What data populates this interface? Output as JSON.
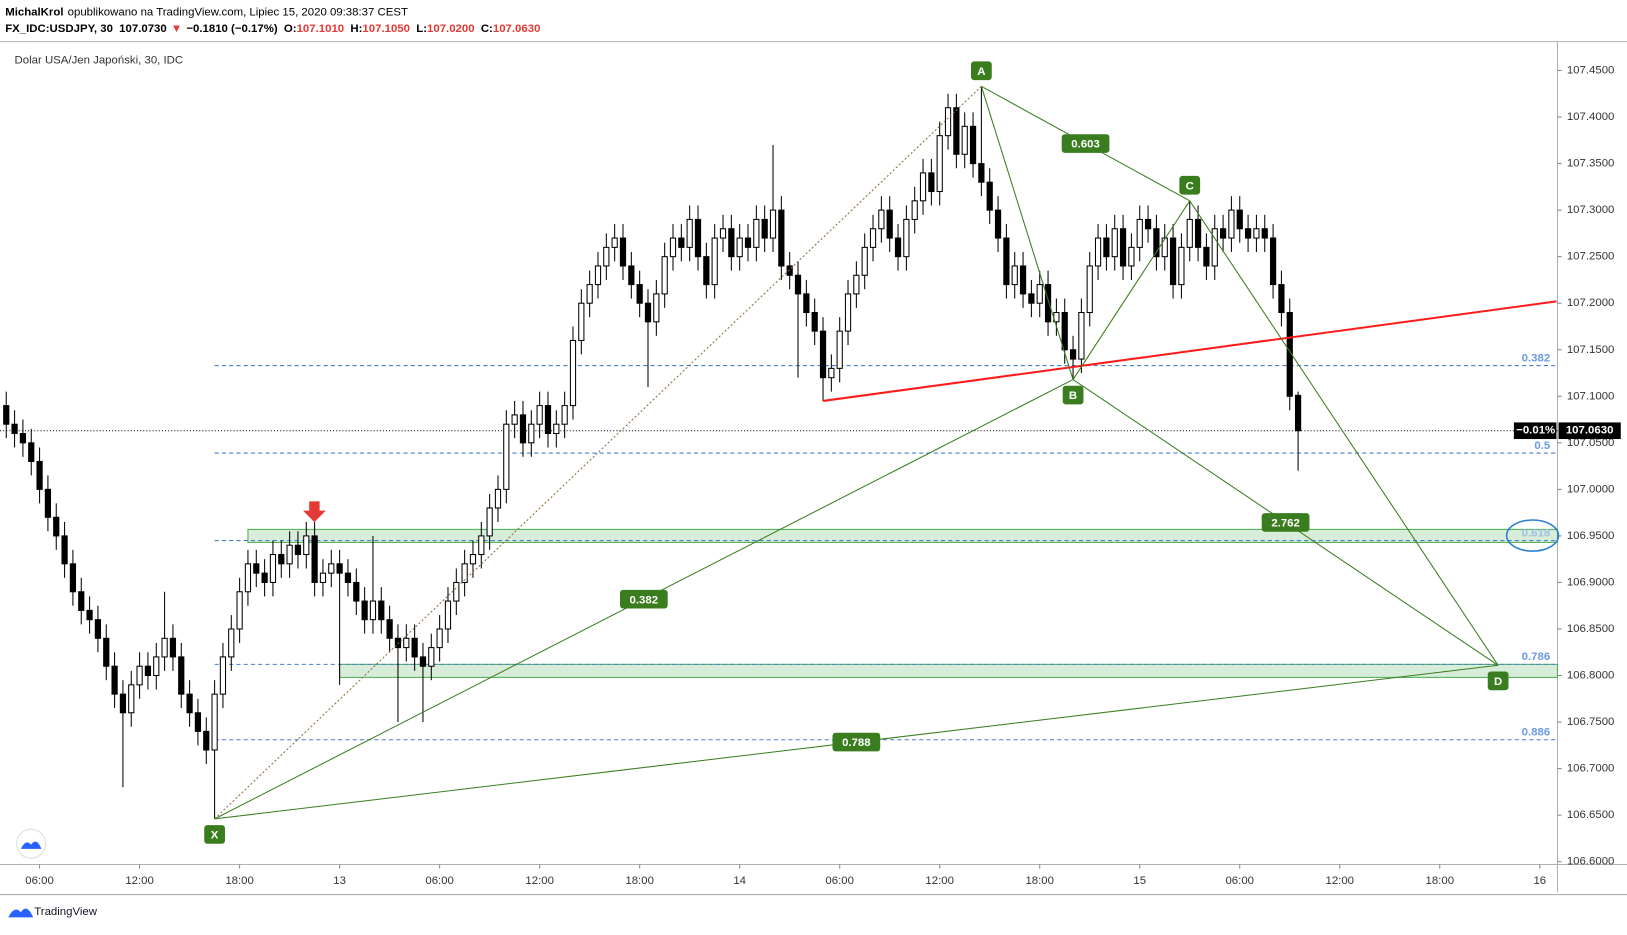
{
  "header": {
    "author": "MichalKrol",
    "byline": "opublikowano na TradingView.com, Lipiec 15, 2020 09:38:37 CEST",
    "symbol": "FX_IDC:USDJPY, 30",
    "price": "107.0730",
    "direction": "▼",
    "change": "−0.1810 (−0.17%)",
    "ohlc": [
      {
        "label": "O:",
        "value": "107.1010"
      },
      {
        "label": "H:",
        "value": "107.1050"
      },
      {
        "label": "L:",
        "value": "107.0200"
      },
      {
        "label": "C:",
        "value": "107.0630"
      }
    ]
  },
  "footer": "TradingView",
  "chart_data": {
    "type": "candlestick",
    "title": "Dolar USA/Jen Japoński, 30, IDC",
    "categories": [
      null,
      null,
      null,
      null,
      "06:00",
      null,
      null,
      null,
      null,
      null,
      null,
      null,
      null,
      null,
      null,
      null,
      "12:00",
      null,
      null,
      null,
      null,
      null,
      null,
      null,
      null,
      null,
      null,
      null,
      "18:00",
      null,
      null,
      null,
      null,
      null,
      null,
      null,
      null,
      null,
      null,
      null,
      "13",
      null,
      null,
      null,
      null,
      null,
      null,
      null,
      null,
      null,
      null,
      null,
      "06:00",
      null,
      null,
      null,
      null,
      null,
      null,
      null,
      null,
      null,
      null,
      null,
      "12:00",
      null,
      null,
      null,
      null,
      null,
      null,
      null,
      null,
      null,
      null,
      null,
      "18:00",
      null,
      null,
      null,
      null,
      null,
      null,
      null,
      null,
      null,
      null,
      null,
      "14",
      null,
      null,
      null,
      null,
      null,
      null,
      null,
      null,
      null,
      null,
      null,
      "06:00",
      null,
      null,
      null,
      null,
      null,
      null,
      null,
      null,
      null,
      null,
      null,
      "12:00",
      null,
      null,
      null,
      null,
      null,
      null,
      null,
      null,
      null,
      null,
      null,
      "18:00",
      null,
      null,
      null,
      null,
      null,
      null,
      null,
      null,
      null,
      null,
      null,
      "15",
      null,
      null,
      null,
      null,
      null,
      null,
      null,
      null,
      null,
      null,
      null,
      "06:00",
      null,
      null,
      null,
      null,
      null,
      null,
      null,
      null,
      null,
      null,
      null,
      "12:00",
      null,
      null,
      null,
      null,
      null,
      null,
      null,
      null,
      null,
      null,
      null,
      "18:00",
      null,
      null,
      null,
      null,
      null,
      null,
      null,
      null,
      null,
      null,
      null,
      "16",
      null
    ],
    "open": [
      107.09,
      107.07,
      107.06,
      107.05,
      107.03,
      107.0,
      106.97,
      106.95,
      106.92,
      106.89,
      106.87,
      106.86,
      106.84,
      106.81,
      106.78,
      106.76,
      106.79,
      106.81,
      106.8,
      106.82,
      106.84,
      106.82,
      106.78,
      106.76,
      106.74,
      106.72,
      106.78,
      106.82,
      106.85,
      106.89,
      106.92,
      106.91,
      106.9,
      106.93,
      106.92,
      106.94,
      106.93,
      106.95,
      106.9,
      106.91,
      106.92,
      106.91,
      106.9,
      106.88,
      106.86,
      106.88,
      106.86,
      106.84,
      106.83,
      106.84,
      106.82,
      106.81,
      106.83,
      106.85,
      106.88,
      106.9,
      106.92,
      106.93,
      106.95,
      106.98,
      107.0,
      107.07,
      107.08,
      107.05,
      107.07,
      107.09,
      107.06,
      107.07,
      107.09,
      107.16,
      107.2,
      107.22,
      107.24,
      107.26,
      107.27,
      107.24,
      107.22,
      107.2,
      107.18,
      107.21,
      107.25,
      107.27,
      107.26,
      107.29,
      107.25,
      107.22,
      107.27,
      107.28,
      107.25,
      107.27,
      107.26,
      107.29,
      107.27,
      107.3,
      107.24,
      107.23,
      107.21,
      107.19,
      107.17,
      107.12,
      107.13,
      107.17,
      107.21,
      107.23,
      107.26,
      107.28,
      107.3,
      107.27,
      107.25,
      107.29,
      107.31,
      107.34,
      107.32,
      107.38,
      107.41,
      107.36,
      107.39,
      107.35,
      107.33,
      107.3,
      107.27,
      107.22,
      107.24,
      107.21,
      107.2,
      107.22,
      107.18,
      107.19,
      107.15,
      107.14,
      107.19,
      107.24,
      107.27,
      107.25,
      107.28,
      107.24,
      107.26,
      107.29,
      107.28,
      107.25,
      107.27,
      107.22,
      107.26,
      107.29,
      107.26,
      107.24,
      107.28,
      107.27,
      107.3,
      107.28,
      107.27,
      107.28,
      107.27,
      107.22,
      107.19,
      107.101,
      null,
      null,
      null,
      null,
      null,
      null,
      null,
      null,
      null,
      null,
      null,
      null,
      null,
      null,
      null,
      null,
      null,
      null,
      null,
      null,
      null,
      null,
      null,
      null,
      null,
      null,
      null,
      null,
      null,
      null
    ],
    "high": [
      107.105,
      107.085,
      107.075,
      107.065,
      107.045,
      107.015,
      106.985,
      106.965,
      106.935,
      106.905,
      106.885,
      106.875,
      106.855,
      106.825,
      106.795,
      106.805,
      106.825,
      106.825,
      106.835,
      106.89,
      106.855,
      106.835,
      106.795,
      106.775,
      106.755,
      106.795,
      106.835,
      106.865,
      106.905,
      106.935,
      106.935,
      106.925,
      106.945,
      106.945,
      106.955,
      106.955,
      106.965,
      106.965,
      106.925,
      106.935,
      106.935,
      106.925,
      106.915,
      106.895,
      106.95,
      106.895,
      106.875,
      106.855,
      106.855,
      106.855,
      106.835,
      106.845,
      106.865,
      106.895,
      106.915,
      106.935,
      106.945,
      106.965,
      106.995,
      107.015,
      107.085,
      107.095,
      107.095,
      107.085,
      107.105,
      107.105,
      107.085,
      107.105,
      107.175,
      107.215,
      107.235,
      107.255,
      107.275,
      107.285,
      107.285,
      107.255,
      107.235,
      107.215,
      107.225,
      107.265,
      107.285,
      107.285,
      107.305,
      107.305,
      107.265,
      107.285,
      107.295,
      107.295,
      107.285,
      107.285,
      107.305,
      107.305,
      107.37,
      107.315,
      107.255,
      107.245,
      107.225,
      107.205,
      107.185,
      107.145,
      107.185,
      107.225,
      107.245,
      107.275,
      107.295,
      107.315,
      107.315,
      107.285,
      107.305,
      107.325,
      107.355,
      107.355,
      107.395,
      107.425,
      107.425,
      107.405,
      107.405,
      107.433,
      107.345,
      107.315,
      107.285,
      107.255,
      107.255,
      107.225,
      107.235,
      107.235,
      107.205,
      107.205,
      107.165,
      107.205,
      107.255,
      107.285,
      107.285,
      107.295,
      107.295,
      107.275,
      107.305,
      107.305,
      107.295,
      107.285,
      107.285,
      107.275,
      107.31,
      107.305,
      107.275,
      107.295,
      107.295,
      107.315,
      107.315,
      107.295,
      107.295,
      107.295,
      107.285,
      107.235,
      107.205,
      107.105,
      null,
      null,
      null,
      null,
      null,
      null,
      null,
      null,
      null,
      null,
      null,
      null,
      null,
      null,
      null,
      null,
      null,
      null,
      null,
      null,
      null,
      null,
      null,
      null,
      null,
      null,
      null,
      null,
      null,
      null
    ],
    "low": [
      107.055,
      107.045,
      107.035,
      107.015,
      106.985,
      106.955,
      106.935,
      106.905,
      106.875,
      106.855,
      106.845,
      106.825,
      106.795,
      106.765,
      106.68,
      106.745,
      106.775,
      106.785,
      106.785,
      106.805,
      106.805,
      106.765,
      106.745,
      106.725,
      106.705,
      106.646,
      106.765,
      106.805,
      106.835,
      106.875,
      106.895,
      106.885,
      106.885,
      106.905,
      106.905,
      106.915,
      106.915,
      106.885,
      106.885,
      106.895,
      106.79,
      106.885,
      106.865,
      106.845,
      106.845,
      106.845,
      106.825,
      106.75,
      106.815,
      106.805,
      106.75,
      106.795,
      106.815,
      106.835,
      106.865,
      106.885,
      106.905,
      106.915,
      106.935,
      106.965,
      106.985,
      107.055,
      107.035,
      107.035,
      107.055,
      107.045,
      107.045,
      107.055,
      107.075,
      107.145,
      107.185,
      107.205,
      107.225,
      107.245,
      107.225,
      107.205,
      107.185,
      107.11,
      107.165,
      107.195,
      107.235,
      107.245,
      107.245,
      107.235,
      107.205,
      107.205,
      107.255,
      107.235,
      107.235,
      107.245,
      107.245,
      107.255,
      107.255,
      107.225,
      107.215,
      107.12,
      107.175,
      107.155,
      107.095,
      107.105,
      107.115,
      107.155,
      107.195,
      107.215,
      107.245,
      107.265,
      107.255,
      107.235,
      107.235,
      107.275,
      107.295,
      107.305,
      107.305,
      107.365,
      107.345,
      107.345,
      107.335,
      107.315,
      107.285,
      107.255,
      107.205,
      107.205,
      107.195,
      107.185,
      107.185,
      107.165,
      107.165,
      107.135,
      107.118,
      107.125,
      107.175,
      107.225,
      107.235,
      107.235,
      107.225,
      107.225,
      107.245,
      107.265,
      107.235,
      107.235,
      107.205,
      107.205,
      107.245,
      107.245,
      107.225,
      107.225,
      107.255,
      107.255,
      107.265,
      107.255,
      107.255,
      107.255,
      107.205,
      107.175,
      107.085,
      107.02,
      null,
      null,
      null,
      null,
      null,
      null,
      null,
      null,
      null,
      null,
      null,
      null,
      null,
      null,
      null,
      null,
      null,
      null,
      null,
      null,
      null,
      null,
      null,
      null,
      null,
      null,
      null,
      null,
      null,
      null
    ],
    "close": [
      107.07,
      107.06,
      107.05,
      107.03,
      107.0,
      106.97,
      106.95,
      106.92,
      106.89,
      106.87,
      106.86,
      106.84,
      106.81,
      106.78,
      106.76,
      106.79,
      106.81,
      106.8,
      106.82,
      106.84,
      106.82,
      106.78,
      106.76,
      106.74,
      106.72,
      106.78,
      106.82,
      106.85,
      106.89,
      106.92,
      106.91,
      106.9,
      106.93,
      106.92,
      106.94,
      106.93,
      106.95,
      106.9,
      106.91,
      106.92,
      106.91,
      106.9,
      106.88,
      106.86,
      106.88,
      106.86,
      106.84,
      106.83,
      106.84,
      106.82,
      106.81,
      106.83,
      106.85,
      106.88,
      106.9,
      106.92,
      106.93,
      106.95,
      106.98,
      107.0,
      107.07,
      107.08,
      107.05,
      107.07,
      107.09,
      107.06,
      107.07,
      107.09,
      107.16,
      107.2,
      107.22,
      107.24,
      107.26,
      107.27,
      107.24,
      107.22,
      107.2,
      107.18,
      107.21,
      107.25,
      107.27,
      107.26,
      107.29,
      107.25,
      107.22,
      107.27,
      107.28,
      107.25,
      107.27,
      107.26,
      107.29,
      107.27,
      107.3,
      107.24,
      107.23,
      107.21,
      107.19,
      107.17,
      107.12,
      107.13,
      107.17,
      107.21,
      107.23,
      107.26,
      107.28,
      107.3,
      107.27,
      107.25,
      107.29,
      107.31,
      107.34,
      107.32,
      107.38,
      107.41,
      107.36,
      107.39,
      107.35,
      107.33,
      107.3,
      107.27,
      107.22,
      107.24,
      107.21,
      107.2,
      107.22,
      107.18,
      107.19,
      107.15,
      107.14,
      107.19,
      107.24,
      107.27,
      107.25,
      107.28,
      107.24,
      107.26,
      107.29,
      107.28,
      107.25,
      107.27,
      107.22,
      107.26,
      107.29,
      107.26,
      107.24,
      107.28,
      107.27,
      107.3,
      107.28,
      107.27,
      107.28,
      107.27,
      107.22,
      107.19,
      107.1,
      107.063,
      null,
      null,
      null,
      null,
      null,
      null,
      null,
      null,
      null,
      null,
      null,
      null,
      null,
      null,
      null,
      null,
      null,
      null,
      null,
      null,
      null,
      null,
      null,
      null,
      null,
      null,
      null,
      null,
      null,
      null
    ],
    "up_color": "#ffffff",
    "down_color": "#000000",
    "ylim": [
      106.597,
      107.481
    ],
    "yticks": [
      {
        "value": 107.45,
        "label": "107.4500"
      },
      {
        "value": 107.4,
        "label": "107.4000"
      },
      {
        "value": 107.35,
        "label": "107.3500"
      },
      {
        "value": 107.3,
        "label": "107.3000"
      },
      {
        "value": 107.25,
        "label": "107.2500"
      },
      {
        "value": 107.2,
        "label": "107.2000"
      },
      {
        "value": 107.15,
        "label": "107.1500"
      },
      {
        "value": 107.1,
        "label": "107.1000"
      },
      {
        "value": 107.05,
        "label": "107.0500"
      },
      {
        "value": 107.0,
        "label": "107.0000"
      },
      {
        "value": 106.95,
        "label": "106.9500"
      },
      {
        "value": 106.9,
        "label": "106.9000"
      },
      {
        "value": 106.85,
        "label": "106.8500"
      },
      {
        "value": 106.8,
        "label": "106.8000"
      },
      {
        "value": 106.75,
        "label": "106.7500"
      },
      {
        "value": 106.7,
        "label": "106.7000"
      },
      {
        "value": 106.65,
        "label": "106.6500"
      },
      {
        "value": 106.6,
        "label": "106.6000"
      }
    ],
    "grid": false,
    "last_price": {
      "value": 107.063,
      "label": "107.0630",
      "change": "−0.01%"
    },
    "fib_levels": [
      {
        "label": "0.382",
        "value": 107.133
      },
      {
        "label": "0.5",
        "value": 107.039
      },
      {
        "label": "0.618",
        "value": 106.945
      },
      {
        "label": "0.786",
        "value": 106.812
      },
      {
        "label": "0.886",
        "value": 106.731
      }
    ],
    "zones": [
      {
        "start": 29,
        "top": 106.957,
        "bottom": 106.943
      },
      {
        "start": 40,
        "top": 106.812,
        "bottom": 106.798
      }
    ],
    "trendline": {
      "color": "#ff1a1a",
      "points": [
        {
          "index": 98,
          "value": 107.095
        },
        {
          "index": 186,
          "value": 107.202
        }
      ]
    },
    "pattern": {
      "color": "#3a7d1e",
      "points": [
        {
          "label": "X",
          "index": 25,
          "price": 106.646
        },
        {
          "label": "A",
          "index": 117,
          "price": 107.433
        },
        {
          "label": "B",
          "index": 128,
          "price": 107.118
        },
        {
          "label": "C",
          "index": 142,
          "price": 107.31
        },
        {
          "label": "D",
          "index": 179,
          "price": 106.811
        }
      ],
      "ratios": [
        "0.382",
        "0.603",
        "2.762",
        "0.788"
      ]
    }
  }
}
